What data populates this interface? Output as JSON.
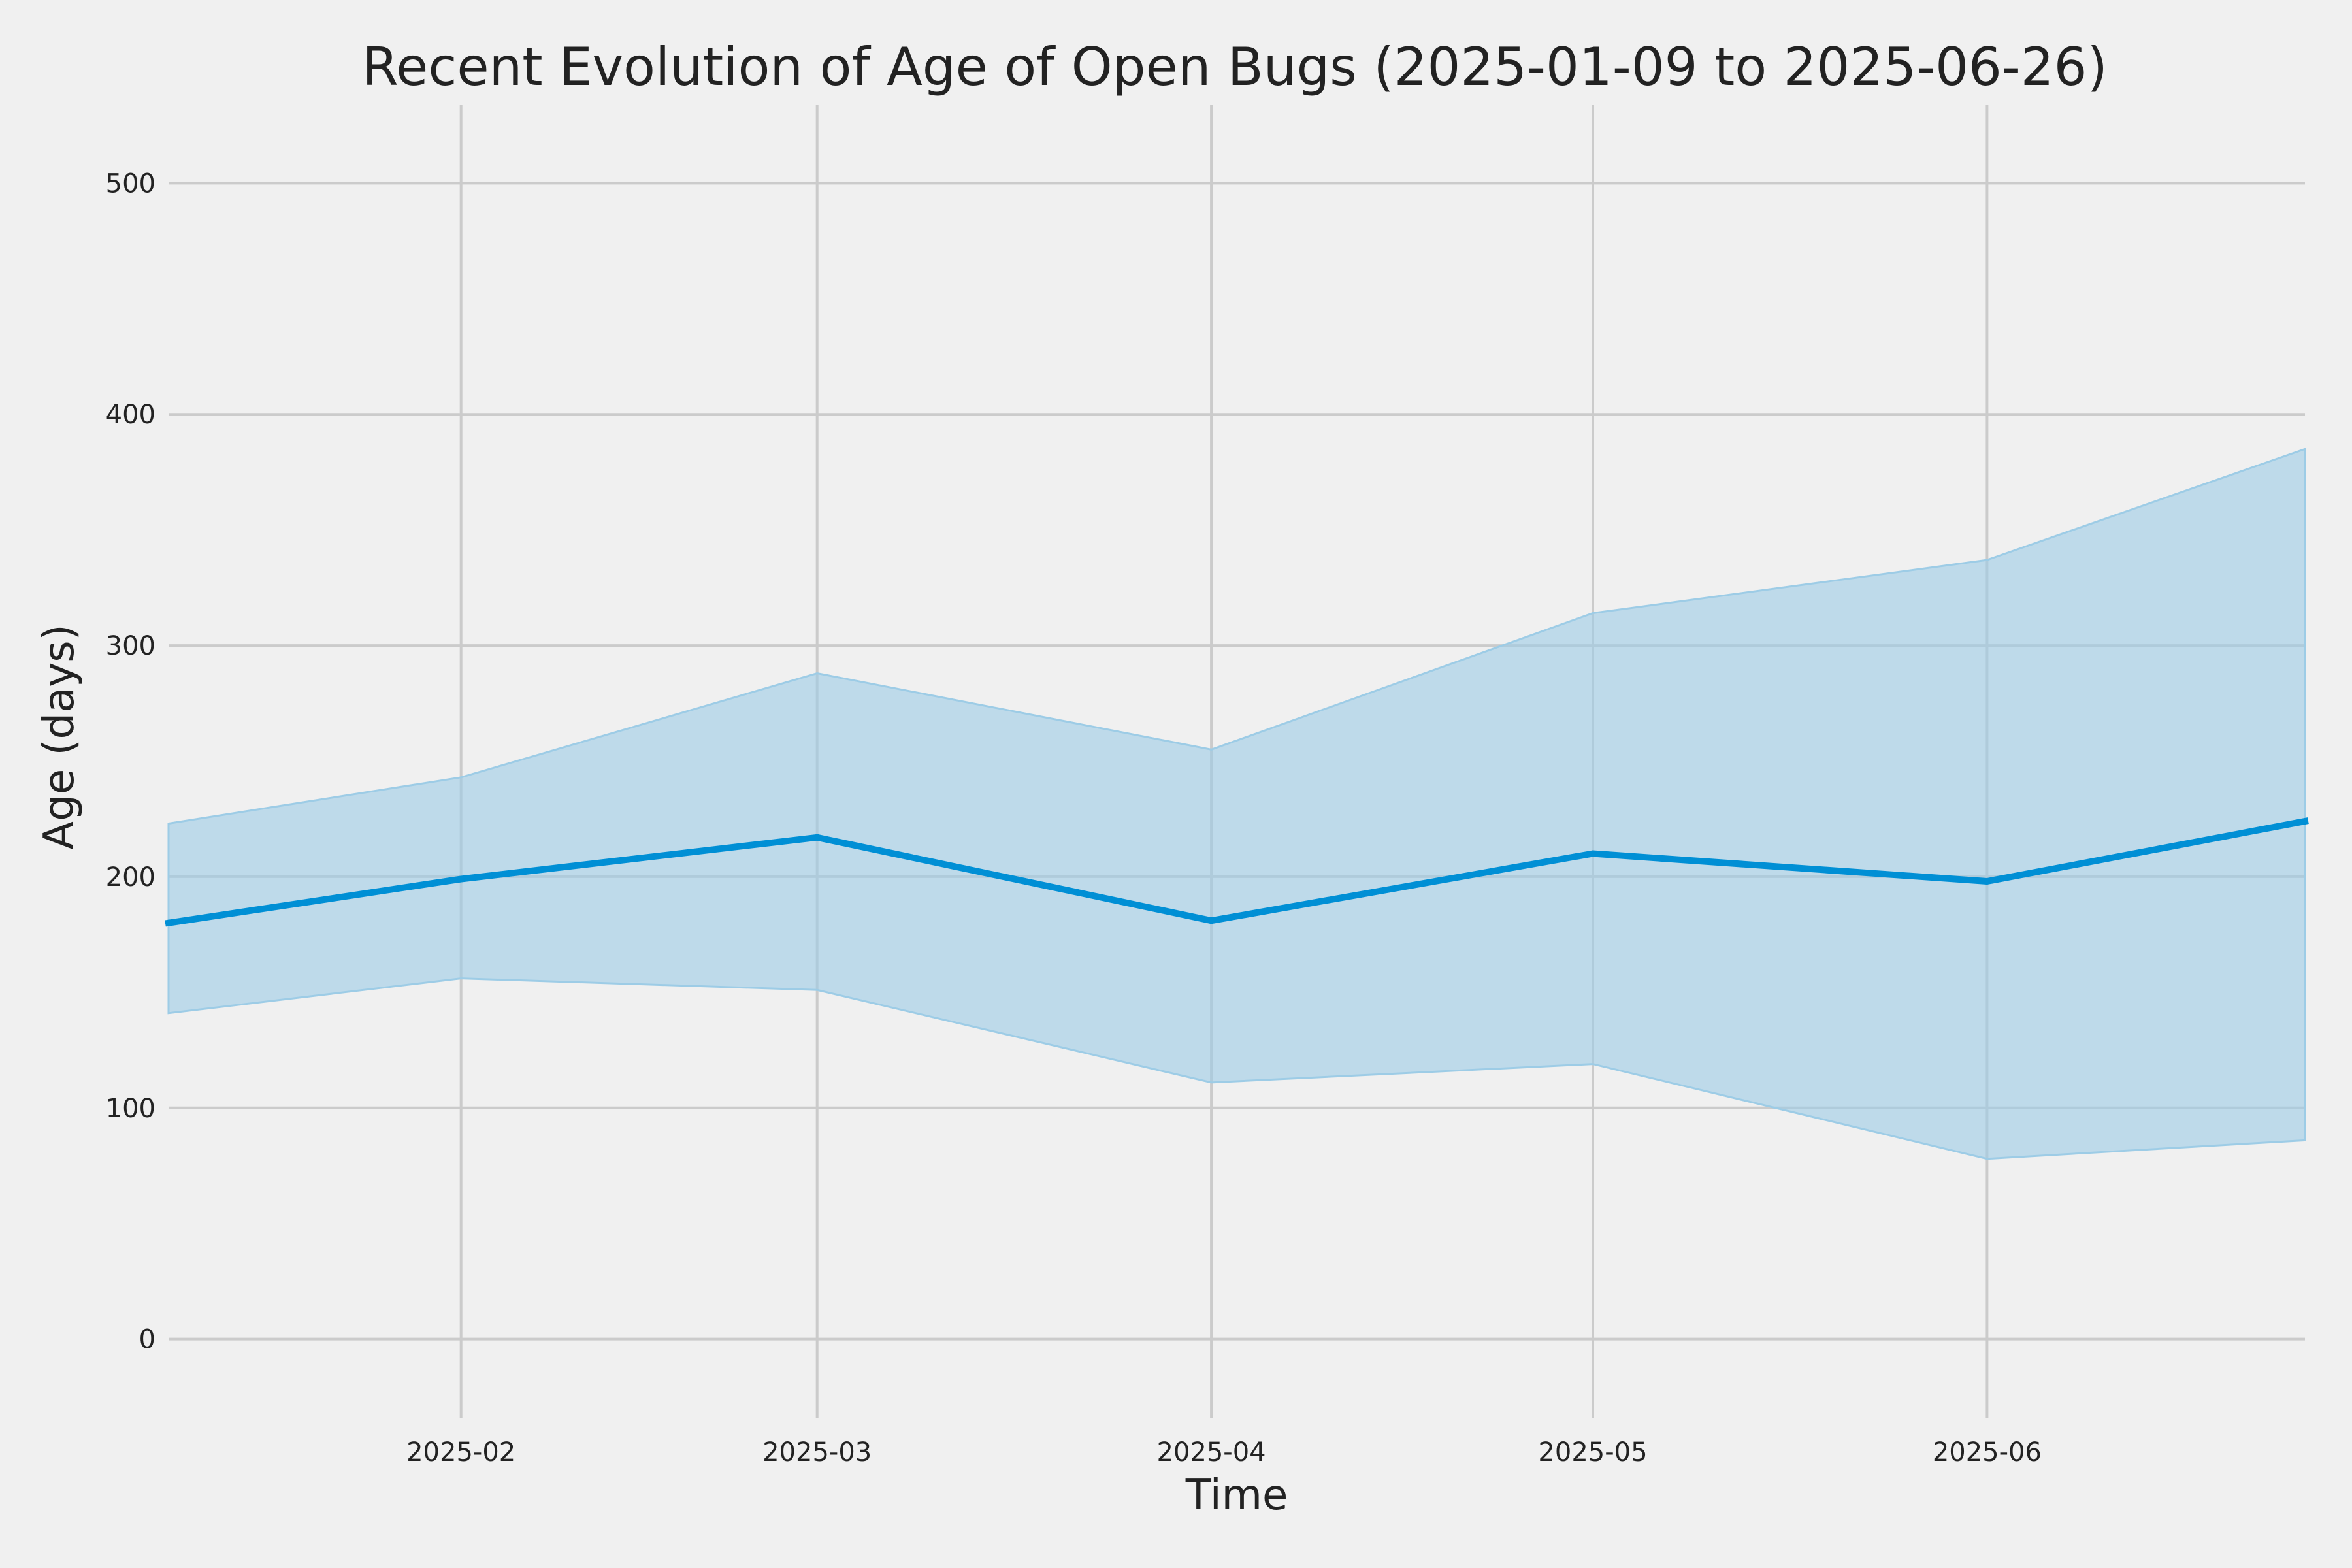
{
  "chart_data": {
    "type": "line",
    "title": "Recent Evolution of Age of Open Bugs (2025-01-09 to 2025-06-26)",
    "xlabel": "Time",
    "ylabel": "Age (days)",
    "x_range": [
      "2025-01-09",
      "2025-06-26"
    ],
    "ylim": [
      -34,
      534
    ],
    "grid": true,
    "x_ticks": [
      {
        "date": "2025-02-01",
        "label": "2025-02"
      },
      {
        "date": "2025-03-01",
        "label": "2025-03"
      },
      {
        "date": "2025-04-01",
        "label": "2025-04"
      },
      {
        "date": "2025-05-01",
        "label": "2025-05"
      },
      {
        "date": "2025-06-01",
        "label": "2025-06"
      }
    ],
    "y_ticks": [
      0,
      100,
      200,
      300,
      400,
      500
    ],
    "line_color": "#008fd5",
    "band_color": "#9dcce6",
    "series": [
      {
        "x": [
          "2025-01-09",
          "2025-02-01",
          "2025-03-01",
          "2025-04-01",
          "2025-05-01",
          "2025-06-01",
          "2025-06-26"
        ],
        "y": [
          180,
          199,
          217,
          181,
          210,
          198,
          224
        ],
        "lower": [
          141,
          156,
          151,
          111,
          119,
          78,
          86
        ],
        "upper": [
          223,
          243,
          288,
          255,
          314,
          337,
          385
        ]
      }
    ]
  }
}
